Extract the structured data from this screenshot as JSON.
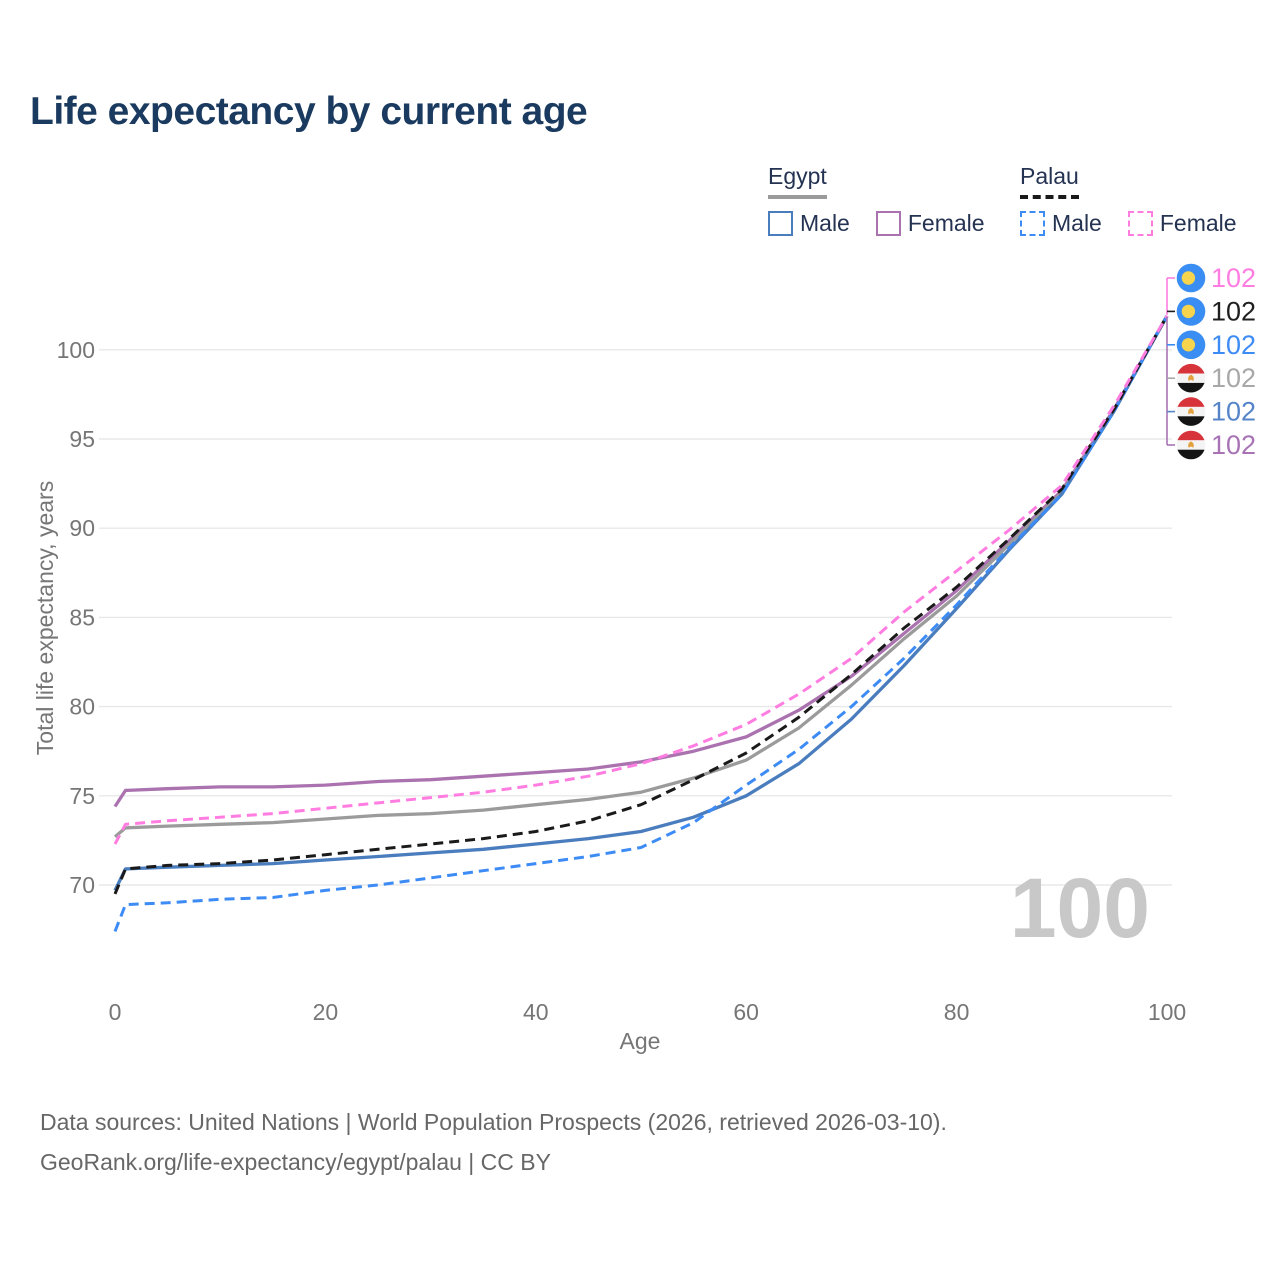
{
  "page": {
    "title": "Life expectancy by current age"
  },
  "legend": {
    "groups": [
      {
        "label": "Egypt",
        "line_color": "#9b9b9b",
        "line_style": "solid"
      },
      {
        "label": "Palau",
        "line_color": "#1a1a1a",
        "line_style": "dashed"
      }
    ],
    "items": [
      {
        "group": "Egypt",
        "label": "Male",
        "color": "#4a7dbe",
        "dash": false
      },
      {
        "group": "Egypt",
        "label": "Female",
        "color": "#ab72b0",
        "dash": false
      },
      {
        "group": "Palau",
        "label": "Male",
        "color": "#3d8bf5",
        "dash": true
      },
      {
        "group": "Palau",
        "label": "Female",
        "color": "#ff7de1",
        "dash": true
      }
    ]
  },
  "watermark": "100",
  "footer": {
    "line1": "Data sources: United Nations | World Population Prospects (2026, retrieved 2026-03-10).",
    "line2": "GeoRank.org/life-expectancy/egypt/palau | CC BY"
  },
  "chart_data": {
    "type": "line",
    "title": "Life expectancy by current age",
    "xlabel": "Age",
    "ylabel": "Total life expectancy, years",
    "xlim": [
      0,
      100
    ],
    "ylim": [
      66,
      103
    ],
    "xticks": [
      0,
      20,
      40,
      60,
      80,
      100
    ],
    "yticks": [
      70,
      75,
      80,
      85,
      90,
      95,
      100
    ],
    "grid": "horizontal",
    "legend_position": "top-right",
    "x": [
      0,
      1,
      5,
      10,
      15,
      20,
      25,
      30,
      35,
      40,
      45,
      50,
      55,
      60,
      65,
      70,
      75,
      80,
      85,
      90,
      95,
      100
    ],
    "series": [
      {
        "name": "Egypt Male",
        "country": "Egypt",
        "sex": "Male",
        "style": "solid",
        "color": "#4a7dbe",
        "values": [
          69.7,
          70.9,
          71.0,
          71.1,
          71.2,
          71.4,
          71.6,
          71.8,
          72.0,
          72.3,
          72.6,
          73.0,
          73.8,
          75.0,
          76.8,
          79.3,
          82.3,
          85.5,
          88.8,
          91.9,
          96.6,
          101.9
        ]
      },
      {
        "name": "Egypt Female",
        "country": "Egypt",
        "sex": "Female",
        "style": "solid",
        "color": "#ab72b0",
        "values": [
          74.4,
          75.3,
          75.4,
          75.5,
          75.5,
          75.6,
          75.8,
          75.9,
          76.1,
          76.3,
          76.5,
          76.9,
          77.5,
          78.3,
          79.8,
          81.7,
          84.1,
          86.5,
          89.3,
          92.1,
          96.7,
          101.9
        ]
      },
      {
        "name": "Egypt Both sexes",
        "country": "Egypt",
        "sex": "All",
        "style": "solid",
        "color": "#9b9b9b",
        "values": [
          72.7,
          73.2,
          73.3,
          73.4,
          73.5,
          73.7,
          73.9,
          74.0,
          74.2,
          74.5,
          74.8,
          75.2,
          76.0,
          77.0,
          78.8,
          81.2,
          83.8,
          86.2,
          89.1,
          92.0,
          96.6,
          101.9
        ]
      },
      {
        "name": "Palau Male",
        "country": "Palau",
        "sex": "Male",
        "style": "dashed",
        "color": "#3d8bf5",
        "values": [
          67.4,
          68.9,
          69.0,
          69.2,
          69.3,
          69.7,
          70.0,
          70.4,
          70.8,
          71.2,
          71.6,
          72.1,
          73.5,
          75.6,
          77.6,
          80.0,
          82.7,
          85.7,
          88.9,
          91.9,
          96.6,
          101.9
        ]
      },
      {
        "name": "Palau Female",
        "country": "Palau",
        "sex": "Female",
        "style": "dashed",
        "color": "#ff7de1",
        "values": [
          72.3,
          73.4,
          73.6,
          73.8,
          74.0,
          74.3,
          74.6,
          74.9,
          75.2,
          75.6,
          76.1,
          76.8,
          77.8,
          79.0,
          80.7,
          82.7,
          85.3,
          87.6,
          89.9,
          92.4,
          96.9,
          101.9
        ]
      },
      {
        "name": "Palau Both sexes",
        "country": "Palau",
        "sex": "All",
        "style": "dashed",
        "color": "#1a1a1a",
        "values": [
          69.5,
          70.9,
          71.1,
          71.2,
          71.4,
          71.7,
          72.0,
          72.3,
          72.6,
          73.0,
          73.6,
          74.5,
          75.9,
          77.4,
          79.4,
          81.8,
          84.4,
          86.7,
          89.4,
          92.2,
          96.7,
          101.9
        ]
      }
    ],
    "end_labels": [
      {
        "series": "Palau Female",
        "flag": "palau",
        "color": "#ff7de1",
        "value": "102"
      },
      {
        "series": "Palau Both sexes",
        "flag": "palau",
        "color": "#1f1f1f",
        "value": "102"
      },
      {
        "series": "Palau Male",
        "flag": "palau",
        "color": "#3d8bf5",
        "value": "102"
      },
      {
        "series": "Egypt Both sexes",
        "flag": "egypt",
        "color": "#a8a8a8",
        "value": "102"
      },
      {
        "series": "Egypt Male",
        "flag": "egypt",
        "color": "#5585c8",
        "value": "102"
      },
      {
        "series": "Egypt Female",
        "flag": "egypt",
        "color": "#a873b5",
        "value": "102"
      }
    ]
  }
}
